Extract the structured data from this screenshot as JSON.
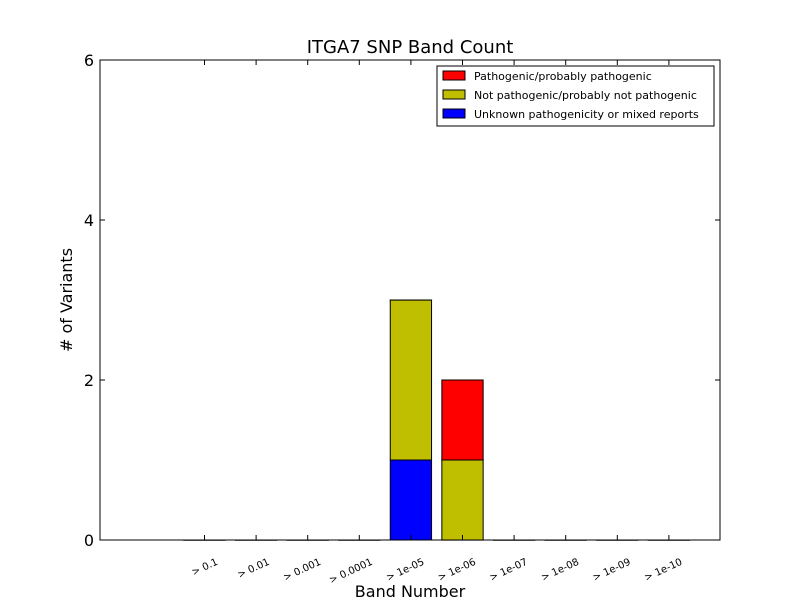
{
  "chart_data": {
    "type": "bar",
    "stacked": true,
    "title": "ITGA7 SNP Band Count",
    "xlabel": "Band Number",
    "ylabel": "# of Variants",
    "ylim": [
      0,
      6
    ],
    "yticks": [
      "0",
      "2",
      "4",
      "6"
    ],
    "categories": [
      "> 0.1",
      "> 0.01",
      "> 0.001",
      "> 0.0001",
      "> 1e-05",
      "> 1e-06",
      "> 1e-07",
      "> 1e-08",
      "> 1e-09",
      "> 1e-10"
    ],
    "series": [
      {
        "name": "Unknown pathogenicity or mixed reports",
        "color": "#0000ff",
        "values": [
          0,
          0,
          0,
          0,
          1,
          0,
          0,
          0,
          0,
          0
        ]
      },
      {
        "name": "Not pathogenic/probably not pathogenic",
        "color": "#bfbf00",
        "values": [
          0,
          0,
          0,
          0,
          2,
          1,
          0,
          0,
          0,
          0
        ]
      },
      {
        "name": "Pathogenic/probably pathogenic",
        "color": "#ff0000",
        "values": [
          0,
          0,
          0,
          0,
          0,
          1,
          0,
          0,
          0,
          0
        ]
      }
    ],
    "legend": {
      "placement": "top-right",
      "entries": [
        {
          "label": "Pathogenic/probably pathogenic",
          "color": "#ff0000"
        },
        {
          "label": "Not pathogenic/probably not pathogenic",
          "color": "#bfbf00"
        },
        {
          "label": "Unknown pathogenicity or mixed reports",
          "color": "#0000ff"
        }
      ]
    },
    "grid": false
  }
}
